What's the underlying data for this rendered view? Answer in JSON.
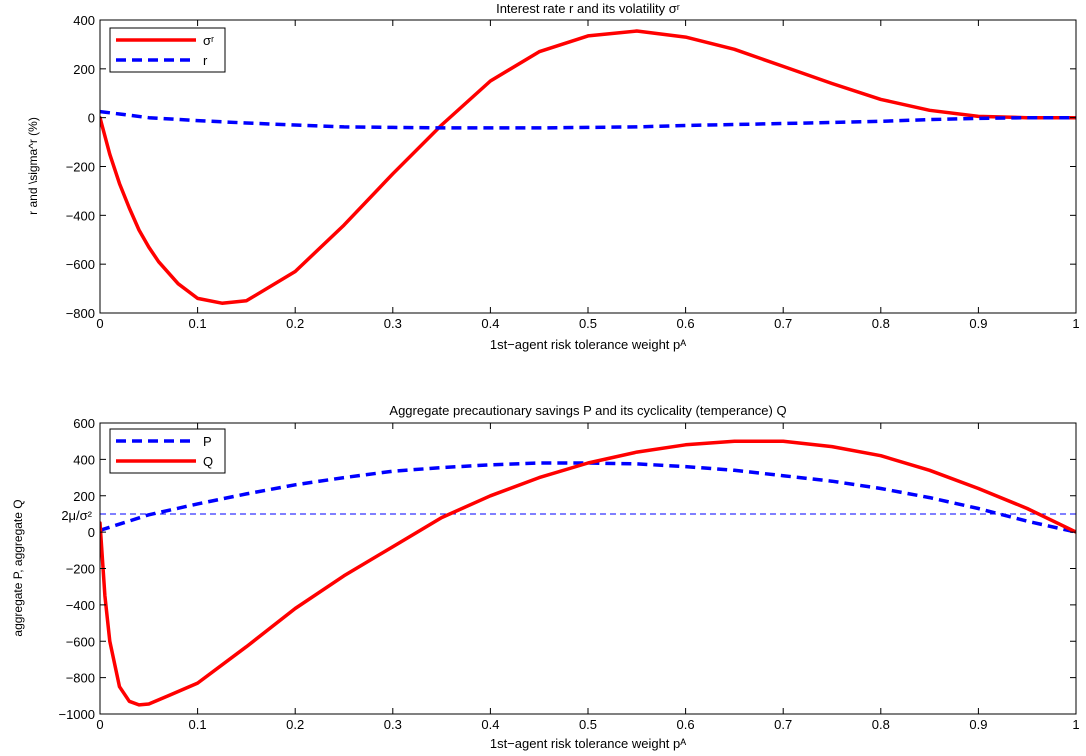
{
  "chart_data": [
    {
      "type": "line",
      "title": "Interest rate r and its volatility σʳ",
      "xlabel": "1st−agent risk tolerance weight pᴬ",
      "ylabel": "r and \\sigma^r (%)",
      "xlim": [
        0,
        1
      ],
      "ylim": [
        -800,
        400
      ],
      "xticks": [
        "0",
        "0.1",
        "0.2",
        "0.3",
        "0.4",
        "0.5",
        "0.6",
        "0.7",
        "0.8",
        "0.9",
        "1"
      ],
      "yticks": [
        "−800",
        "−600",
        "−400",
        "−200",
        "0",
        "200",
        "400"
      ],
      "grid": false,
      "legend": "top-left",
      "series": [
        {
          "name": "σʳ",
          "color": "#ff0000",
          "style": "solid",
          "x": [
            0,
            0.01,
            0.02,
            0.03,
            0.04,
            0.05,
            0.06,
            0.08,
            0.1,
            0.125,
            0.15,
            0.2,
            0.25,
            0.3,
            0.35,
            0.4,
            0.45,
            0.5,
            0.55,
            0.6,
            0.65,
            0.7,
            0.75,
            0.8,
            0.85,
            0.9,
            0.95,
            1.0
          ],
          "y": [
            0,
            -150,
            -270,
            -370,
            -460,
            -530,
            -590,
            -680,
            -740,
            -760,
            -750,
            -630,
            -440,
            -230,
            -30,
            150,
            270,
            335,
            355,
            330,
            280,
            210,
            140,
            75,
            30,
            5,
            0,
            0
          ]
        },
        {
          "name": "r",
          "color": "#0000ff",
          "style": "dashed",
          "x": [
            0,
            0.02,
            0.05,
            0.1,
            0.15,
            0.2,
            0.25,
            0.3,
            0.35,
            0.4,
            0.45,
            0.5,
            0.55,
            0.6,
            0.65,
            0.7,
            0.75,
            0.8,
            0.85,
            0.9,
            0.95,
            1.0
          ],
          "y": [
            25,
            15,
            0,
            -12,
            -22,
            -30,
            -38,
            -40,
            -42,
            -42,
            -42,
            -40,
            -38,
            -32,
            -28,
            -24,
            -20,
            -15,
            -8,
            -3,
            0,
            0
          ]
        }
      ]
    },
    {
      "type": "line",
      "title": "Aggregate precautionary savings P and its cyclicality (temperance) Q",
      "xlabel": "1st−agent risk tolerance weight pᴬ",
      "ylabel": "aggregate P, aggregate Q",
      "xlim": [
        0,
        1
      ],
      "ylim": [
        -1000,
        600
      ],
      "xticks": [
        "0",
        "0.1",
        "0.2",
        "0.3",
        "0.4",
        "0.5",
        "0.6",
        "0.7",
        "0.8",
        "0.9",
        "1"
      ],
      "yticks": [
        "−1000",
        "−800",
        "−600",
        "−400",
        "−200",
        "0",
        "200",
        "400",
        "600"
      ],
      "grid": false,
      "legend": "top-left",
      "reference_line": {
        "y": 100,
        "label": "2μ/σ²",
        "color": "#0000ff",
        "style": "dashed"
      },
      "series": [
        {
          "name": "P",
          "color": "#0000ff",
          "style": "dashed",
          "x": [
            0,
            0.05,
            0.1,
            0.15,
            0.2,
            0.25,
            0.3,
            0.35,
            0.4,
            0.45,
            0.5,
            0.55,
            0.6,
            0.65,
            0.7,
            0.75,
            0.8,
            0.85,
            0.9,
            0.95,
            1.0
          ],
          "y": [
            10,
            95,
            155,
            210,
            260,
            300,
            335,
            355,
            370,
            380,
            380,
            375,
            360,
            340,
            310,
            280,
            240,
            190,
            130,
            60,
            0
          ]
        },
        {
          "name": "Q",
          "color": "#ff0000",
          "style": "solid",
          "x": [
            0,
            0.005,
            0.01,
            0.02,
            0.03,
            0.04,
            0.05,
            0.07,
            0.1,
            0.15,
            0.2,
            0.25,
            0.3,
            0.35,
            0.4,
            0.45,
            0.5,
            0.55,
            0.6,
            0.65,
            0.7,
            0.75,
            0.8,
            0.85,
            0.9,
            0.95,
            1.0
          ],
          "y": [
            50,
            -350,
            -600,
            -850,
            -930,
            -950,
            -945,
            -900,
            -830,
            -630,
            -420,
            -240,
            -80,
            80,
            200,
            300,
            380,
            440,
            480,
            500,
            500,
            470,
            420,
            340,
            240,
            130,
            0
          ]
        }
      ]
    }
  ]
}
